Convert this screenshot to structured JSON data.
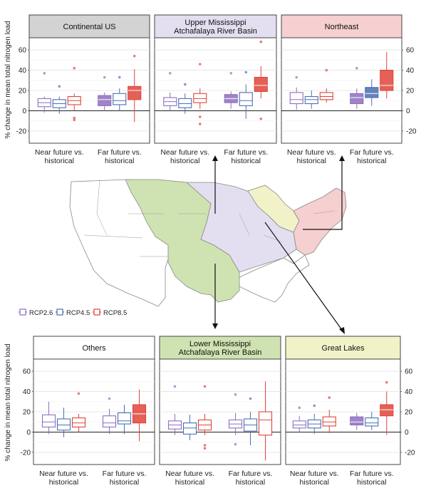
{
  "figure": {
    "ylabel": "% change in mean total nitrogen load",
    "legend": [
      {
        "label": "RCP2.6",
        "color": "#8e6fbf"
      },
      {
        "label": "RCP4.5",
        "color": "#4a6fb3"
      },
      {
        "label": "RCP8.5",
        "color": "#e0443a"
      }
    ],
    "region_colors": {
      "upper_mississippi": "#e4dff0",
      "lower_mississippi": "#cfe3b2",
      "great_lakes": "#f2f2c8",
      "northeast": "#f6cfd0",
      "others": "#ffffff"
    }
  },
  "chart_data": [
    {
      "type": "box",
      "title": "Continental US",
      "header_color": "#d3d3d3",
      "ylim": [
        -32,
        72
      ],
      "yticks": [
        -20,
        0,
        20,
        40,
        60
      ],
      "categories": [
        "Near future vs.\nhistorical",
        "Far future vs.\nhistorical"
      ],
      "series": [
        {
          "name": "RCP2.6",
          "filled": [
            false,
            true
          ],
          "boxes": [
            {
              "whislo": -2,
              "q1": 4,
              "med": 8,
              "q3": 12,
              "whishi": 14,
              "fliers": [
                37
              ]
            },
            {
              "whislo": 0,
              "q1": 5,
              "med": 11,
              "q3": 15,
              "whishi": 18,
              "fliers": [
                33
              ]
            }
          ]
        },
        {
          "name": "RCP4.5",
          "filled": [
            false,
            false
          ],
          "boxes": [
            {
              "whislo": -3,
              "q1": 3,
              "med": 7,
              "q3": 11,
              "whishi": 14,
              "fliers": [
                24
              ]
            },
            {
              "whislo": 0,
              "q1": 6,
              "med": 10,
              "q3": 17,
              "whishi": 22,
              "fliers": [
                33
              ]
            }
          ]
        },
        {
          "name": "RCP8.5",
          "filled": [
            false,
            true
          ],
          "boxes": [
            {
              "whislo": 0,
              "q1": 6,
              "med": 10,
              "q3": 14,
              "whishi": 17,
              "fliers": [
                42,
                -7,
                -9
              ]
            },
            {
              "whislo": -11,
              "q1": 11,
              "med": 20,
              "q3": 24,
              "whishi": 41,
              "fliers": [
                54
              ]
            }
          ]
        }
      ]
    },
    {
      "type": "box",
      "title": "Upper Mississippi\nAtchafalaya River Basin",
      "header_color": "#e4dff0",
      "ylim": [
        -32,
        72
      ],
      "yticks": [
        -20,
        0,
        20,
        40,
        60
      ],
      "categories": [
        "Near future vs.\nhistorical",
        "Far future vs.\nhistorical"
      ],
      "series": [
        {
          "name": "RCP2.6",
          "filled": [
            false,
            true
          ],
          "boxes": [
            {
              "whislo": 0,
              "q1": 5,
              "med": 9,
              "q3": 13,
              "whishi": 18,
              "fliers": [
                37
              ]
            },
            {
              "whislo": 2,
              "q1": 8,
              "med": 12,
              "q3": 16,
              "whishi": 19,
              "fliers": [
                37
              ]
            }
          ]
        },
        {
          "name": "RCP4.5",
          "filled": [
            false,
            false
          ],
          "boxes": [
            {
              "whislo": -3,
              "q1": 3,
              "med": 7,
              "q3": 12,
              "whishi": 17,
              "fliers": [
                26
              ]
            },
            {
              "whislo": -8,
              "q1": 5,
              "med": 10,
              "q3": 18,
              "whishi": 26,
              "fliers": [
                38
              ]
            }
          ]
        },
        {
          "name": "RCP8.5",
          "filled": [
            false,
            true
          ],
          "boxes": [
            {
              "whislo": 2,
              "q1": 8,
              "med": 12,
              "q3": 17,
              "whishi": 22,
              "fliers": [
                46,
                -6,
                -13
              ]
            },
            {
              "whislo": 12,
              "q1": 19,
              "med": 25,
              "q3": 33,
              "whishi": 44,
              "fliers": [
                68,
                -8
              ]
            }
          ]
        }
      ]
    },
    {
      "type": "box",
      "title": "Northeast",
      "header_color": "#f6cfd0",
      "ylim": [
        -32,
        72
      ],
      "yticks": [
        -20,
        0,
        20,
        40,
        60
      ],
      "categories": [
        "Near future vs.\nhistorical",
        "Far future vs.\nhistorical"
      ],
      "series": [
        {
          "name": "RCP2.6",
          "filled": [
            false,
            true
          ],
          "boxes": [
            {
              "whislo": 1,
              "q1": 7,
              "med": 11,
              "q3": 18,
              "whishi": 23,
              "fliers": [
                33
              ]
            },
            {
              "whislo": 2,
              "q1": 7,
              "med": 13,
              "q3": 17,
              "whishi": 22,
              "fliers": [
                42
              ]
            }
          ]
        },
        {
          "name": "RCP4.5",
          "filled": [
            false,
            true
          ],
          "boxes": [
            {
              "whislo": 2,
              "q1": 7,
              "med": 11,
              "q3": 14,
              "whishi": 20,
              "fliers": []
            },
            {
              "whislo": 5,
              "q1": 13,
              "med": 17,
              "q3": 23,
              "whishi": 31,
              "fliers": []
            }
          ]
        },
        {
          "name": "RCP8.5",
          "filled": [
            false,
            true
          ],
          "boxes": [
            {
              "whislo": 8,
              "q1": 11,
              "med": 14,
              "q3": 18,
              "whishi": 22,
              "fliers": [
                40
              ]
            },
            {
              "whislo": 12,
              "q1": 20,
              "med": 25,
              "q3": 40,
              "whishi": 58,
              "fliers": []
            }
          ]
        }
      ]
    },
    {
      "type": "box",
      "title": "Others",
      "header_color": "#ffffff",
      "ylim": [
        -32,
        72
      ],
      "yticks": [
        -20,
        0,
        20,
        40,
        60
      ],
      "categories": [
        "Near future vs.\nhistorical",
        "Far future vs.\nhistorical"
      ],
      "series": [
        {
          "name": "RCP2.6",
          "filled": [
            false,
            false
          ],
          "boxes": [
            {
              "whislo": -2,
              "q1": 5,
              "med": 10,
              "q3": 17,
              "whishi": 30,
              "fliers": []
            },
            {
              "whislo": -2,
              "q1": 5,
              "med": 9,
              "q3": 16,
              "whishi": 23,
              "fliers": [
                33
              ]
            }
          ]
        },
        {
          "name": "RCP4.5",
          "filled": [
            false,
            false
          ],
          "boxes": [
            {
              "whislo": -5,
              "q1": 2,
              "med": 7,
              "q3": 13,
              "whishi": 24,
              "fliers": []
            },
            {
              "whislo": -2,
              "q1": 8,
              "med": 11,
              "q3": 19,
              "whishi": 27,
              "fliers": []
            }
          ]
        },
        {
          "name": "RCP8.5",
          "filled": [
            false,
            true
          ],
          "boxes": [
            {
              "whislo": 0,
              "q1": 5,
              "med": 9,
              "q3": 14,
              "whishi": 18,
              "fliers": [
                38
              ]
            },
            {
              "whislo": -9,
              "q1": 9,
              "med": 18,
              "q3": 27,
              "whishi": 42,
              "fliers": []
            }
          ]
        }
      ]
    },
    {
      "type": "box",
      "title": "Lower Mississippi\nAtchafalaya River Basin",
      "header_color": "#cfe3b2",
      "ylim": [
        -32,
        72
      ],
      "yticks": [
        -20,
        0,
        20,
        40,
        60
      ],
      "categories": [
        "Near future vs.\nhistorical",
        "Far future vs.\nhistorical"
      ],
      "series": [
        {
          "name": "RCP2.6",
          "filled": [
            false,
            false
          ],
          "boxes": [
            {
              "whislo": -3,
              "q1": 3,
              "med": 7,
              "q3": 11,
              "whishi": 18,
              "fliers": [
                45
              ]
            },
            {
              "whislo": -3,
              "q1": 4,
              "med": 8,
              "q3": 12,
              "whishi": 19,
              "fliers": [
                37,
                -12
              ]
            }
          ]
        },
        {
          "name": "RCP4.5",
          "filled": [
            false,
            false
          ],
          "boxes": [
            {
              "whislo": -8,
              "q1": -2,
              "med": 4,
              "q3": 9,
              "whishi": 17,
              "fliers": []
            },
            {
              "whislo": -13,
              "q1": 1,
              "med": 7,
              "q3": 13,
              "whishi": 20,
              "fliers": [
                33
              ]
            }
          ]
        },
        {
          "name": "RCP8.5",
          "filled": [
            false,
            false
          ],
          "boxes": [
            {
              "whislo": -3,
              "q1": 2,
              "med": 7,
              "q3": 12,
              "whishi": 18,
              "fliers": [
                45,
                -13,
                -16
              ]
            },
            {
              "whislo": -28,
              "q1": -3,
              "med": 12,
              "q3": 20,
              "whishi": 50,
              "fliers": []
            }
          ]
        }
      ]
    },
    {
      "type": "box",
      "title": "Great Lakes",
      "header_color": "#f2f2c8",
      "ylim": [
        -32,
        72
      ],
      "yticks": [
        -20,
        0,
        20,
        40,
        60
      ],
      "categories": [
        "Near future vs.\nhistorical",
        "Far future vs.\nhistorical"
      ],
      "series": [
        {
          "name": "RCP2.6",
          "filled": [
            false,
            true
          ],
          "boxes": [
            {
              "whislo": 0,
              "q1": 4,
              "med": 7,
              "q3": 11,
              "whishi": 16,
              "fliers": [
                24
              ]
            },
            {
              "whislo": 2,
              "q1": 7,
              "med": 10,
              "q3": 15,
              "whishi": 19,
              "fliers": []
            }
          ]
        },
        {
          "name": "RCP4.5",
          "filled": [
            false,
            false
          ],
          "boxes": [
            {
              "whislo": -2,
              "q1": 4,
              "med": 8,
              "q3": 12,
              "whishi": 18,
              "fliers": [
                26
              ]
            },
            {
              "whislo": 2,
              "q1": 6,
              "med": 9,
              "q3": 14,
              "whishi": 20,
              "fliers": []
            }
          ]
        },
        {
          "name": "RCP8.5",
          "filled": [
            false,
            true
          ],
          "boxes": [
            {
              "whislo": -1,
              "q1": 6,
              "med": 10,
              "q3": 15,
              "whishi": 22,
              "fliers": [
                34
              ]
            },
            {
              "whislo": -3,
              "q1": 16,
              "med": 22,
              "q3": 27,
              "whishi": 40,
              "fliers": [
                49
              ]
            }
          ]
        }
      ]
    }
  ]
}
